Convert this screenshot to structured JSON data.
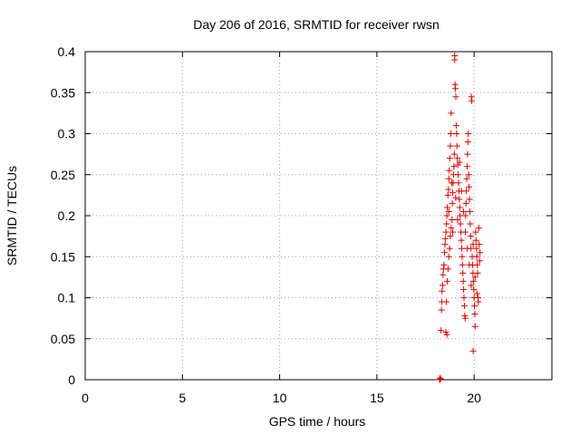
{
  "chart_data": {
    "type": "scatter",
    "title": "Day 206 of 2016, SRMTID for receiver rwsn",
    "xlabel": "GPS time / hours",
    "ylabel": "SRMTID / TECUs",
    "xlim": [
      0,
      24
    ],
    "ylim": [
      0,
      0.4
    ],
    "xticks": [
      0,
      5,
      10,
      15,
      20
    ],
    "xtick_labels": [
      "0",
      "5",
      "10",
      "15",
      "20"
    ],
    "yticks": [
      0,
      0.05,
      0.1,
      0.15,
      0.2,
      0.25,
      0.3,
      0.35,
      0.4
    ],
    "ytick_labels": [
      "0",
      "0.05",
      "0.1",
      "0.15",
      "0.2",
      "0.25",
      "0.3",
      "0.35",
      "0.4"
    ],
    "grid": true,
    "marker": "+",
    "marker_color": "#dd0000",
    "series": [
      {
        "name": "rwsn",
        "points": [
          [
            18.22,
            0.0
          ],
          [
            18.25,
            0.002
          ],
          [
            18.28,
            0.001
          ],
          [
            18.3,
            0.06
          ],
          [
            18.32,
            0.085
          ],
          [
            18.33,
            0.095
          ],
          [
            18.35,
            0.108
          ],
          [
            18.38,
            0.115
          ],
          [
            18.4,
            0.128
          ],
          [
            18.42,
            0.135
          ],
          [
            18.45,
            0.14
          ],
          [
            18.48,
            0.155
          ],
          [
            18.5,
            0.165
          ],
          [
            18.52,
            0.172
          ],
          [
            18.55,
            0.18
          ],
          [
            18.58,
            0.19
          ],
          [
            18.6,
            0.2
          ],
          [
            18.62,
            0.21
          ],
          [
            18.55,
            0.058
          ],
          [
            18.6,
            0.055
          ],
          [
            18.65,
            0.225
          ],
          [
            18.68,
            0.232
          ],
          [
            18.7,
            0.245
          ],
          [
            18.72,
            0.255
          ],
          [
            18.75,
            0.27
          ],
          [
            18.78,
            0.285
          ],
          [
            18.8,
            0.3
          ],
          [
            18.82,
            0.325
          ],
          [
            18.58,
            0.095
          ],
          [
            18.62,
            0.12
          ],
          [
            18.66,
            0.135
          ],
          [
            18.7,
            0.15
          ],
          [
            18.74,
            0.16
          ],
          [
            18.78,
            0.175
          ],
          [
            18.82,
            0.185
          ],
          [
            18.86,
            0.195
          ],
          [
            18.88,
            0.215
          ],
          [
            18.9,
            0.228
          ],
          [
            18.92,
            0.24
          ],
          [
            18.94,
            0.25
          ],
          [
            18.96,
            0.26
          ],
          [
            18.98,
            0.275
          ],
          [
            19.0,
            0.39
          ],
          [
            19.0,
            0.395
          ],
          [
            19.02,
            0.36
          ],
          [
            19.04,
            0.355
          ],
          [
            19.06,
            0.345
          ],
          [
            19.08,
            0.31
          ],
          [
            19.1,
            0.3
          ],
          [
            19.12,
            0.285
          ],
          [
            19.14,
            0.27
          ],
          [
            19.16,
            0.262
          ],
          [
            19.18,
            0.25
          ],
          [
            19.2,
            0.24
          ],
          [
            19.22,
            0.23
          ],
          [
            19.24,
            0.22
          ],
          [
            19.26,
            0.21
          ],
          [
            19.28,
            0.2
          ],
          [
            19.3,
            0.19
          ],
          [
            19.32,
            0.18
          ],
          [
            19.34,
            0.17
          ],
          [
            19.36,
            0.16
          ],
          [
            19.38,
            0.15
          ],
          [
            19.4,
            0.14
          ],
          [
            19.42,
            0.13
          ],
          [
            19.44,
            0.12
          ],
          [
            19.46,
            0.11
          ],
          [
            19.48,
            0.1
          ],
          [
            19.5,
            0.09
          ],
          [
            19.52,
            0.078
          ],
          [
            19.54,
            0.075
          ],
          [
            19.56,
            0.2
          ],
          [
            19.58,
            0.215
          ],
          [
            19.6,
            0.23
          ],
          [
            19.62,
            0.245
          ],
          [
            19.64,
            0.26
          ],
          [
            19.66,
            0.275
          ],
          [
            19.68,
            0.29
          ],
          [
            19.7,
            0.3
          ],
          [
            19.72,
            0.25
          ],
          [
            19.74,
            0.235
          ],
          [
            19.76,
            0.22
          ],
          [
            19.78,
            0.205
          ],
          [
            19.8,
            0.19
          ],
          [
            19.82,
            0.175
          ],
          [
            19.84,
            0.16
          ],
          [
            19.86,
            0.345
          ],
          [
            19.88,
            0.34
          ],
          [
            19.9,
            0.15
          ],
          [
            19.92,
            0.14
          ],
          [
            19.94,
            0.13
          ],
          [
            19.96,
            0.12
          ],
          [
            19.98,
            0.11
          ],
          [
            20.0,
            0.1
          ],
          [
            20.02,
            0.09
          ],
          [
            20.04,
            0.08
          ],
          [
            19.95,
            0.035
          ],
          [
            20.05,
            0.065
          ],
          [
            20.08,
            0.18
          ],
          [
            20.1,
            0.17
          ],
          [
            20.12,
            0.16
          ],
          [
            20.14,
            0.15
          ],
          [
            20.16,
            0.14
          ],
          [
            20.18,
            0.13
          ],
          [
            20.2,
            0.1
          ],
          [
            20.22,
            0.095
          ],
          [
            20.24,
            0.185
          ],
          [
            20.26,
            0.165
          ],
          [
            20.28,
            0.145
          ],
          [
            20.3,
            0.155
          ],
          [
            18.7,
            0.205
          ],
          [
            18.85,
            0.24
          ],
          [
            19.05,
            0.222
          ],
          [
            19.25,
            0.265
          ],
          [
            19.45,
            0.205
          ],
          [
            19.65,
            0.16
          ],
          [
            19.85,
            0.115
          ],
          [
            20.05,
            0.125
          ],
          [
            18.9,
            0.18
          ],
          [
            19.15,
            0.195
          ],
          [
            19.35,
            0.23
          ],
          [
            19.55,
            0.18
          ],
          [
            19.75,
            0.14
          ],
          [
            19.95,
            0.165
          ],
          [
            20.15,
            0.105
          ]
        ]
      }
    ]
  }
}
